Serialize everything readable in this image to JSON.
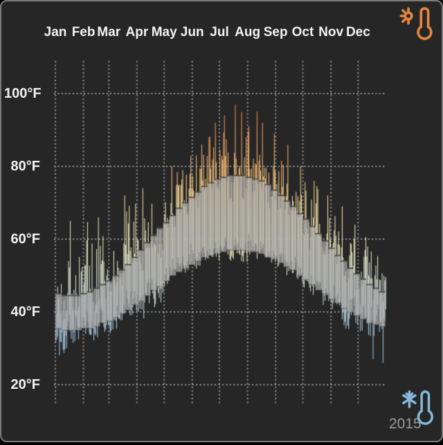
{
  "window": {
    "background": "#262626",
    "outer_background": "#000000",
    "border_color": "#7c7c7c"
  },
  "year_label": "2015",
  "icons": {
    "hot_icon": "thermometer-sun-icon",
    "hot_color": "#e2843f",
    "cold_icon": "thermometer-snowflake-icon",
    "cold_color": "#85b7d9",
    "year_text_color": "#9c9c9c"
  },
  "chart_data": {
    "type": "bar",
    "subtype": "daily-temperature-range-bars-with-weekly-normal-band",
    "title": "",
    "unit": "°F",
    "x_axis": {
      "labels": [
        "Jan",
        "Feb",
        "Mar",
        "Apr",
        "May",
        "Jun",
        "Jul",
        "Aug",
        "Sep",
        "Oct",
        "Nov",
        "Dec"
      ],
      "gridline_day_offsets": [
        0,
        31,
        59,
        90,
        120,
        151,
        181,
        212,
        243,
        273,
        304,
        334
      ],
      "days_in_year": 365
    },
    "y_axis": {
      "labels": [
        "100°F",
        "80°F",
        "60°F",
        "40°F",
        "20°F"
      ],
      "values": [
        100,
        80,
        60,
        40,
        20
      ],
      "min": 20,
      "max": 100,
      "grid": "dotted"
    },
    "grid_color": "#969696",
    "band": {
      "name": "weekly average high-low band",
      "fill": "rgba(172,172,172,0.72)",
      "edge": "rgba(70,70,70,0.85)",
      "weeks_avg_high_avg_low_max_high_min_low": [
        [
          45,
          35.5,
          62,
          28
        ],
        [
          44.5,
          35,
          58,
          27.5
        ],
        [
          44.5,
          35,
          65,
          31
        ],
        [
          44.5,
          35,
          60,
          30
        ],
        [
          45,
          35.5,
          63,
          32
        ],
        [
          45.5,
          35.5,
          66,
          30
        ],
        [
          46.5,
          36,
          64,
          32
        ],
        [
          47.5,
          37,
          67,
          33
        ],
        [
          48.5,
          37.5,
          66,
          33
        ],
        [
          50,
          38.5,
          72,
          34
        ],
        [
          51.5,
          39.5,
          68,
          35
        ],
        [
          53,
          40.5,
          70,
          36
        ],
        [
          55,
          42,
          72,
          37
        ],
        [
          57,
          43,
          74,
          38
        ],
        [
          59,
          44.5,
          73,
          40
        ],
        [
          61,
          46,
          76,
          42
        ],
        [
          63,
          47,
          78,
          43
        ],
        [
          64.5,
          48.5,
          80,
          45
        ],
        [
          66.5,
          50,
          79,
          46
        ],
        [
          68.5,
          51,
          82,
          48
        ],
        [
          70,
          52,
          84,
          49
        ],
        [
          71.5,
          53,
          86,
          51
        ],
        [
          73,
          54,
          88,
          52
        ],
        [
          74.5,
          55,
          87,
          53
        ],
        [
          75.5,
          55.5,
          90,
          53
        ],
        [
          76.5,
          56,
          92,
          53.5
        ],
        [
          77,
          56.5,
          94,
          54
        ],
        [
          77.5,
          57,
          95,
          54
        ],
        [
          77.5,
          57,
          97,
          54.5
        ],
        [
          77.5,
          57,
          93,
          54
        ],
        [
          77,
          56.5,
          95,
          53.5
        ],
        [
          76.5,
          56.5,
          91,
          53
        ],
        [
          76,
          56,
          92,
          52.5
        ],
        [
          75,
          55,
          89,
          54
        ],
        [
          73.5,
          54.5,
          87,
          53
        ],
        [
          72,
          53.5,
          86,
          52
        ],
        [
          70.5,
          52.5,
          85,
          50
        ],
        [
          69,
          51.5,
          83,
          49
        ],
        [
          67,
          50,
          80,
          48
        ],
        [
          65.5,
          49,
          78,
          46
        ],
        [
          63.5,
          47.5,
          76,
          44
        ],
        [
          61.5,
          46,
          74,
          43
        ],
        [
          59.5,
          45,
          72,
          41
        ],
        [
          57.5,
          43.5,
          70,
          40
        ],
        [
          55.5,
          42.5,
          68,
          38
        ],
        [
          54,
          41,
          66,
          36
        ],
        [
          52,
          40,
          64,
          34
        ],
        [
          50.5,
          39,
          68,
          33
        ],
        [
          49,
          38,
          62,
          31
        ],
        [
          47.5,
          37,
          58,
          30
        ],
        [
          46.5,
          36.5,
          56,
          27
        ],
        [
          45.5,
          36,
          54,
          26
        ]
      ]
    },
    "bars": {
      "name": "daily high-low temperature bars",
      "color_scale_stops": [
        [
          20,
          "#8FB6DD"
        ],
        [
          30,
          "#9CC0E2"
        ],
        [
          38,
          "#B3CDDE"
        ],
        [
          46,
          "#CCD8CF"
        ],
        [
          54,
          "#E0E2C2"
        ],
        [
          60,
          "#EAE8B9"
        ],
        [
          66,
          "#EFE3AB"
        ],
        [
          72,
          "#F4D795"
        ],
        [
          78,
          "#F7C379"
        ],
        [
          84,
          "#F4A862"
        ],
        [
          90,
          "#EF914D"
        ],
        [
          100,
          "#EA7E3C"
        ]
      ],
      "noise_seed": 13,
      "notable_days": [
        {
          "day": 4,
          "low": 28
        },
        {
          "day": 16,
          "high": 65
        },
        {
          "day": 47,
          "high": 66
        },
        {
          "day": 76,
          "high": 72
        },
        {
          "day": 96,
          "high": 74
        },
        {
          "day": 128,
          "high": 80
        },
        {
          "day": 140,
          "high": 79
        },
        {
          "day": 155,
          "high": 83
        },
        {
          "day": 169,
          "high": 88
        },
        {
          "day": 176,
          "high": 92
        },
        {
          "day": 186,
          "high": 94
        },
        {
          "day": 198,
          "high": 97,
          "low": 60
        },
        {
          "day": 205,
          "high": 95
        },
        {
          "day": 213,
          "high": 91
        },
        {
          "day": 222,
          "high": 95
        },
        {
          "day": 228,
          "high": 92
        },
        {
          "day": 241,
          "high": 89
        },
        {
          "day": 256,
          "high": 86
        },
        {
          "day": 270,
          "high": 80
        },
        {
          "day": 285,
          "high": 76
        },
        {
          "day": 300,
          "high": 72
        },
        {
          "day": 316,
          "high": 69
        },
        {
          "day": 330,
          "high": 64
        },
        {
          "day": 344,
          "high": 58
        },
        {
          "day": 350,
          "low": 27
        },
        {
          "day": 361,
          "low": 26
        }
      ]
    }
  }
}
